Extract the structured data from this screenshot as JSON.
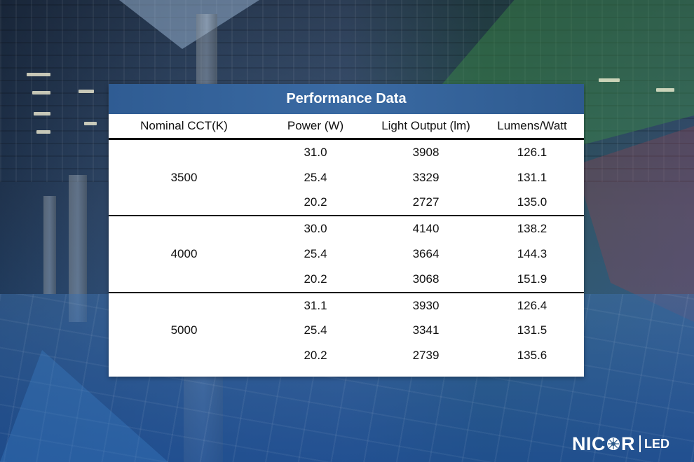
{
  "panel": {
    "title": "Performance Data",
    "headers": [
      "Nominal CCT(K)",
      "Power (W)",
      "Light Output (lm)",
      "Lumens/Watt"
    ],
    "groups": [
      {
        "cct": "3500",
        "rows": [
          {
            "power": "31.0",
            "output": "3908",
            "lpw": "126.1"
          },
          {
            "power": "25.4",
            "output": "3329",
            "lpw": "131.1"
          },
          {
            "power": "20.2",
            "output": "2727",
            "lpw": "135.0"
          }
        ]
      },
      {
        "cct": "4000",
        "rows": [
          {
            "power": "30.0",
            "output": "4140",
            "lpw": "138.2"
          },
          {
            "power": "25.4",
            "output": "3664",
            "lpw": "144.3"
          },
          {
            "power": "20.2",
            "output": "3068",
            "lpw": "151.9"
          }
        ]
      },
      {
        "cct": "5000",
        "rows": [
          {
            "power": "31.1",
            "output": "3930",
            "lpw": "126.4"
          },
          {
            "power": "25.4",
            "output": "3341",
            "lpw": "131.5"
          },
          {
            "power": "20.2",
            "output": "2739",
            "lpw": "135.6"
          }
        ]
      }
    ]
  },
  "logo": {
    "brand_left": "NIC",
    "brand_right": "R",
    "burst_icon": "starburst-icon",
    "sub": "LED"
  },
  "colors": {
    "title_bar": "#3a6aa3",
    "title_text": "#ffffff",
    "panel_bg": "#ffffff",
    "text": "#111111"
  }
}
